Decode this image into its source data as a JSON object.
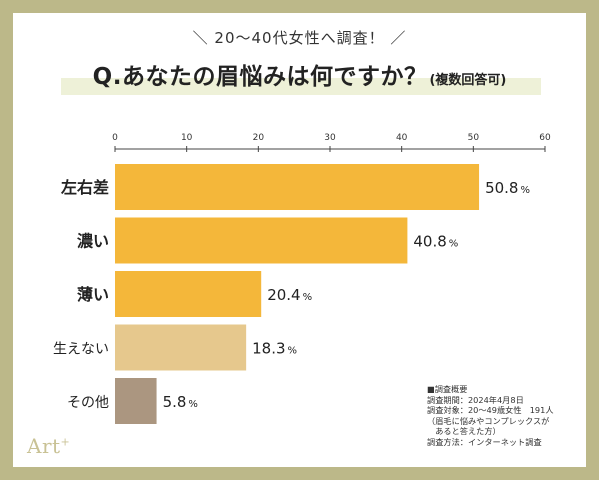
{
  "header": {
    "subtitle": "＼ 20〜40代女性へ調査！ ／",
    "title": "Q.あなたの眉悩みは何ですか？",
    "title_note": "(複数回答可)"
  },
  "chart_data": {
    "type": "bar",
    "orientation": "horizontal",
    "categories": [
      "左右差",
      "濃い",
      "薄い",
      "生えない",
      "その他"
    ],
    "values": [
      50.8,
      40.8,
      20.4,
      18.3,
      5.8
    ],
    "value_labels": [
      "50.8",
      "40.8",
      "20.4",
      "18.3",
      "5.8"
    ],
    "unit": "%",
    "ticks": [
      0,
      10,
      20,
      30,
      40,
      50,
      60
    ],
    "xlim": [
      0,
      60
    ],
    "bar_colors": [
      "#f4b73a",
      "#f4b73a",
      "#f4b73a",
      "#e6c88d",
      "#ab9680"
    ],
    "bold_categories": [
      true,
      true,
      true,
      false,
      false
    ],
    "grid": false
  },
  "notes": {
    "heading": "■調査概要",
    "lines": [
      "調査期間：2024年4月8日",
      "調査対象：20〜49歳女性　191人",
      "（眉毛に悩みやコンプレックスが",
      "　あると答えた方）",
      "調査方法：インターネット調査"
    ]
  },
  "logo": {
    "text": "Art",
    "sup": "+"
  }
}
